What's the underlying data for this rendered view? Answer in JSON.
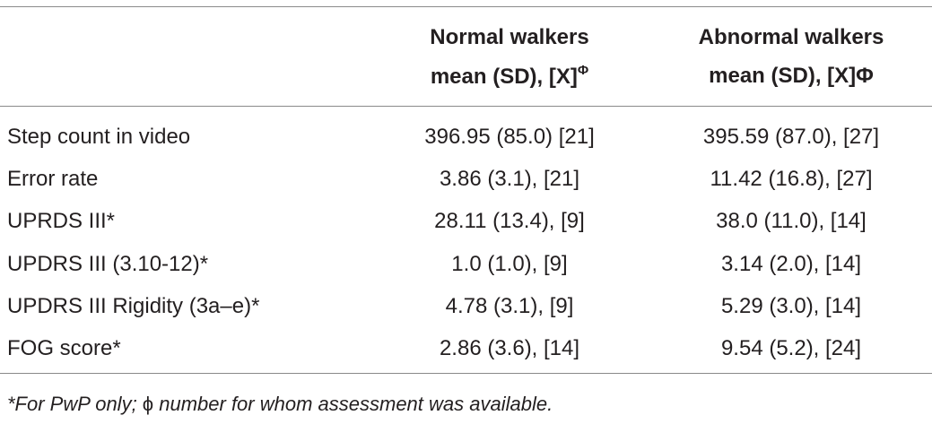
{
  "table": {
    "header": [
      {
        "lines": [
          "Normal walkers",
          "mean (SD), [X]"
        ],
        "mark": "Φ"
      },
      {
        "lines": [
          "Abnormal walkers",
          "mean (SD), [X]"
        ],
        "mark": "Φ"
      }
    ],
    "rows": [
      [
        "Step count in video",
        "396.95 (85.0) [21]",
        "395.59 (87.0), [27]"
      ],
      [
        "Error rate",
        "3.86 (3.1), [21]",
        "11.42 (16.8), [27]"
      ],
      [
        "UPRDS III*",
        "28.11 (13.4), [9]",
        "38.0 (11.0), [14]"
      ],
      [
        "UPDRS III (3.10-12)*",
        "1.0 (1.0), [9]",
        "3.14 (2.0), [14]"
      ],
      [
        "UPDRS III Rigidity (3a–e)*",
        "4.78 (3.1), [9]",
        "5.29 (3.0), [14]"
      ],
      [
        "FOG score*",
        "2.86 (3.6), [14]",
        "9.54 (5.2), [24]"
      ]
    ],
    "footnote": [
      "*For PwP only; ",
      "ϕ",
      " number for whom assessment was available."
    ]
  }
}
